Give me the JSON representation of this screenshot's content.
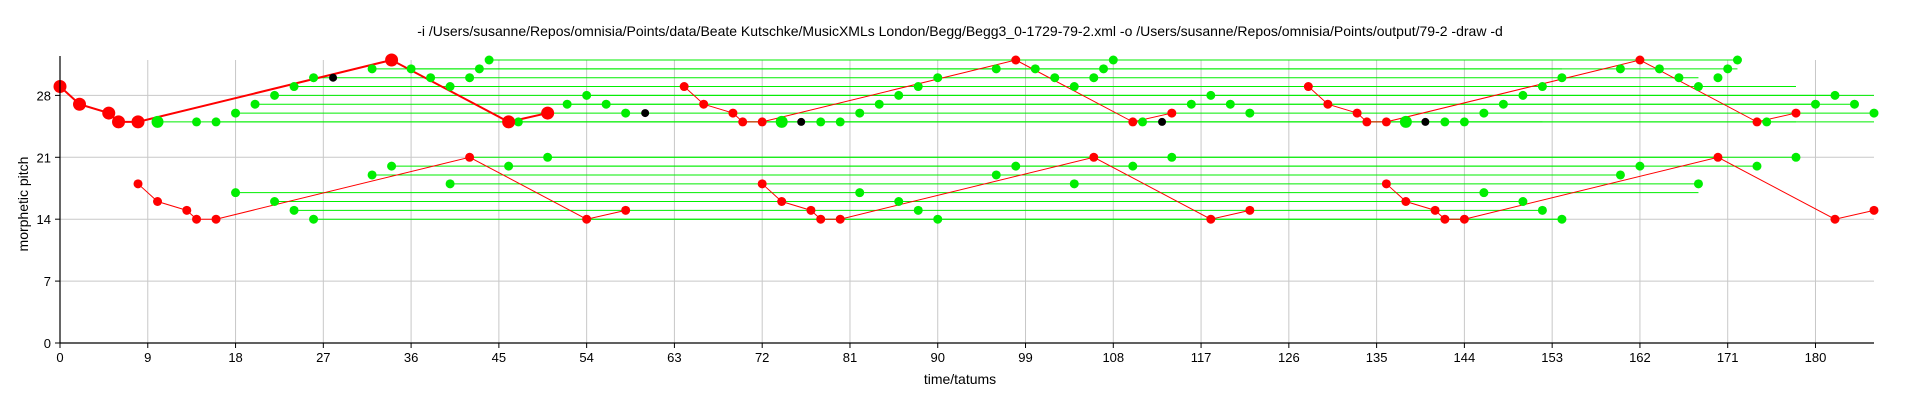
{
  "chart_data": {
    "type": "scatter",
    "title": "-i /Users/susanne/Repos/omnisia/Points/data/Beate Kutschke/MusicXMLs London/Begg/Begg3_0-1729-79-2.xml -o /Users/susanne/Repos/omnisia/Points/output/79-2 -draw -d",
    "xlabel": "time/tatums",
    "ylabel": "morphetic pitch",
    "xlim": [
      0,
      186
    ],
    "ylim": [
      0,
      32
    ],
    "xticks": [
      "0",
      "9",
      "18",
      "27",
      "36",
      "45",
      "54",
      "63",
      "72",
      "81",
      "90",
      "99",
      "108",
      "117",
      "126",
      "135",
      "144",
      "153",
      "162",
      "171",
      "180"
    ],
    "yticks": [
      "0",
      "7",
      "14",
      "21",
      "28"
    ],
    "grid": true,
    "colors": {
      "pattern": "#ff0000",
      "translation": "#00ee00",
      "other": "#000000",
      "axis": "#000000",
      "grid": "#c8c8c8"
    },
    "red_pattern": {
      "name": "pattern",
      "color": "#ff0000",
      "bold_points": [
        [
          0,
          29
        ],
        [
          2,
          27
        ],
        [
          5,
          26
        ],
        [
          6,
          25
        ],
        [
          8,
          25
        ],
        [
          34,
          32
        ],
        [
          46,
          25
        ],
        [
          50,
          26
        ]
      ],
      "points": [
        [
          8,
          18
        ],
        [
          10,
          16
        ],
        [
          13,
          15
        ],
        [
          14,
          14
        ],
        [
          16,
          14
        ],
        [
          42,
          21
        ],
        [
          54,
          14
        ],
        [
          58,
          15
        ],
        [
          64,
          29
        ],
        [
          66,
          27
        ],
        [
          69,
          26
        ],
        [
          70,
          25
        ],
        [
          72,
          25
        ],
        [
          72,
          18
        ],
        [
          74,
          16
        ],
        [
          77,
          15
        ],
        [
          78,
          14
        ],
        [
          80,
          14
        ],
        [
          98,
          32
        ],
        [
          106,
          21
        ],
        [
          110,
          25
        ],
        [
          114,
          26
        ],
        [
          118,
          14
        ],
        [
          122,
          15
        ],
        [
          128,
          29
        ],
        [
          130,
          27
        ],
        [
          133,
          26
        ],
        [
          134,
          25
        ],
        [
          136,
          25
        ],
        [
          136,
          18
        ],
        [
          138,
          16
        ],
        [
          141,
          15
        ],
        [
          142,
          14
        ],
        [
          144,
          14
        ],
        [
          162,
          32
        ],
        [
          170,
          21
        ],
        [
          174,
          25
        ],
        [
          178,
          26
        ],
        [
          182,
          14
        ],
        [
          186,
          15
        ]
      ],
      "lines": [
        [
          [
            0,
            29
          ],
          [
            2,
            27
          ],
          [
            5,
            26
          ],
          [
            6,
            25
          ],
          [
            8,
            25
          ],
          [
            34,
            32
          ],
          [
            46,
            25
          ],
          [
            50,
            26
          ]
        ],
        [
          [
            8,
            18
          ],
          [
            10,
            16
          ],
          [
            13,
            15
          ],
          [
            14,
            14
          ],
          [
            16,
            14
          ],
          [
            42,
            21
          ],
          [
            54,
            14
          ],
          [
            58,
            15
          ]
        ],
        [
          [
            64,
            29
          ],
          [
            66,
            27
          ],
          [
            69,
            26
          ],
          [
            70,
            25
          ],
          [
            72,
            25
          ],
          [
            98,
            32
          ],
          [
            110,
            25
          ],
          [
            114,
            26
          ]
        ],
        [
          [
            72,
            18
          ],
          [
            74,
            16
          ],
          [
            77,
            15
          ],
          [
            78,
            14
          ],
          [
            80,
            14
          ],
          [
            106,
            21
          ],
          [
            118,
            14
          ],
          [
            122,
            15
          ]
        ],
        [
          [
            128,
            29
          ],
          [
            130,
            27
          ],
          [
            133,
            26
          ],
          [
            134,
            25
          ],
          [
            136,
            25
          ],
          [
            162,
            32
          ],
          [
            174,
            25
          ],
          [
            178,
            26
          ]
        ],
        [
          [
            136,
            18
          ],
          [
            138,
            16
          ],
          [
            141,
            15
          ],
          [
            142,
            14
          ],
          [
            144,
            14
          ],
          [
            170,
            21
          ],
          [
            182,
            14
          ],
          [
            186,
            15
          ]
        ]
      ]
    },
    "green_points": {
      "name": "translations",
      "color": "#00ee00",
      "bold_points": [
        [
          10,
          25
        ],
        [
          74,
          25
        ],
        [
          138,
          25
        ]
      ],
      "points": [
        [
          14,
          25
        ],
        [
          16,
          25
        ],
        [
          18,
          26
        ],
        [
          20,
          27
        ],
        [
          22,
          28
        ],
        [
          24,
          29
        ],
        [
          26,
          30
        ],
        [
          32,
          31
        ],
        [
          36,
          31
        ],
        [
          38,
          30
        ],
        [
          40,
          29
        ],
        [
          42,
          30
        ],
        [
          43,
          31
        ],
        [
          44,
          32
        ],
        [
          47,
          25
        ],
        [
          52,
          27
        ],
        [
          54,
          28
        ],
        [
          56,
          27
        ],
        [
          58,
          26
        ],
        [
          78,
          25
        ],
        [
          80,
          25
        ],
        [
          82,
          26
        ],
        [
          84,
          27
        ],
        [
          86,
          28
        ],
        [
          88,
          29
        ],
        [
          90,
          30
        ],
        [
          96,
          31
        ],
        [
          100,
          31
        ],
        [
          102,
          30
        ],
        [
          104,
          29
        ],
        [
          106,
          30
        ],
        [
          107,
          31
        ],
        [
          108,
          32
        ],
        [
          111,
          25
        ],
        [
          116,
          27
        ],
        [
          118,
          28
        ],
        [
          120,
          27
        ],
        [
          122,
          26
        ],
        [
          142,
          25
        ],
        [
          144,
          25
        ],
        [
          146,
          26
        ],
        [
          148,
          27
        ],
        [
          150,
          28
        ],
        [
          152,
          29
        ],
        [
          154,
          30
        ],
        [
          160,
          31
        ],
        [
          164,
          31
        ],
        [
          166,
          30
        ],
        [
          168,
          29
        ],
        [
          170,
          30
        ],
        [
          171,
          31
        ],
        [
          172,
          32
        ],
        [
          175,
          25
        ],
        [
          180,
          27
        ],
        [
          182,
          28
        ],
        [
          184,
          27
        ],
        [
          186,
          26
        ],
        [
          18,
          17
        ],
        [
          22,
          16
        ],
        [
          24,
          15
        ],
        [
          26,
          14
        ],
        [
          32,
          19
        ],
        [
          34,
          20
        ],
        [
          40,
          18
        ],
        [
          46,
          20
        ],
        [
          50,
          21
        ],
        [
          82,
          17
        ],
        [
          86,
          16
        ],
        [
          88,
          15
        ],
        [
          90,
          14
        ],
        [
          96,
          19
        ],
        [
          98,
          20
        ],
        [
          104,
          18
        ],
        [
          110,
          20
        ],
        [
          114,
          21
        ],
        [
          146,
          17
        ],
        [
          150,
          16
        ],
        [
          152,
          15
        ],
        [
          154,
          14
        ],
        [
          160,
          19
        ],
        [
          162,
          20
        ],
        [
          168,
          18
        ],
        [
          174,
          20
        ],
        [
          178,
          21
        ]
      ],
      "lines": [
        [
          [
            10,
            25
          ],
          [
            186,
            25
          ]
        ],
        [
          [
            16,
            25
          ],
          [
            178,
            25
          ]
        ],
        [
          [
            18,
            26
          ],
          [
            186,
            26
          ]
        ],
        [
          [
            20,
            27
          ],
          [
            184,
            27
          ]
        ],
        [
          [
            22,
            28
          ],
          [
            186,
            28
          ]
        ],
        [
          [
            24,
            29
          ],
          [
            178,
            29
          ]
        ],
        [
          [
            26,
            30
          ],
          [
            168,
            30
          ]
        ],
        [
          [
            32,
            31
          ],
          [
            172,
            31
          ]
        ],
        [
          [
            36,
            31
          ],
          [
            154,
            31
          ]
        ],
        [
          [
            44,
            32
          ],
          [
            172,
            32
          ]
        ],
        [
          [
            46,
            25
          ],
          [
            152,
            25
          ]
        ],
        [
          [
            52,
            27
          ],
          [
            180,
            27
          ]
        ],
        [
          [
            54,
            28
          ],
          [
            182,
            28
          ]
        ],
        [
          [
            18,
            17
          ],
          [
            168,
            17
          ]
        ],
        [
          [
            22,
            16
          ],
          [
            150,
            16
          ]
        ],
        [
          [
            24,
            15
          ],
          [
            152,
            15
          ]
        ],
        [
          [
            26,
            14
          ],
          [
            154,
            14
          ]
        ],
        [
          [
            32,
            19
          ],
          [
            160,
            19
          ]
        ],
        [
          [
            34,
            20
          ],
          [
            162,
            20
          ]
        ],
        [
          [
            40,
            18
          ],
          [
            168,
            18
          ]
        ],
        [
          [
            46,
            20
          ],
          [
            174,
            20
          ]
        ],
        [
          [
            50,
            21
          ],
          [
            178,
            21
          ]
        ],
        [
          [
            42,
            21
          ],
          [
            170,
            21
          ]
        ],
        [
          [
            54,
            14
          ],
          [
            154,
            14
          ]
        ]
      ]
    },
    "black_points": {
      "name": "other",
      "color": "#000000",
      "points": [
        [
          28,
          30
        ],
        [
          60,
          26
        ],
        [
          76,
          25
        ],
        [
          113,
          25
        ],
        [
          140,
          25
        ]
      ]
    }
  }
}
